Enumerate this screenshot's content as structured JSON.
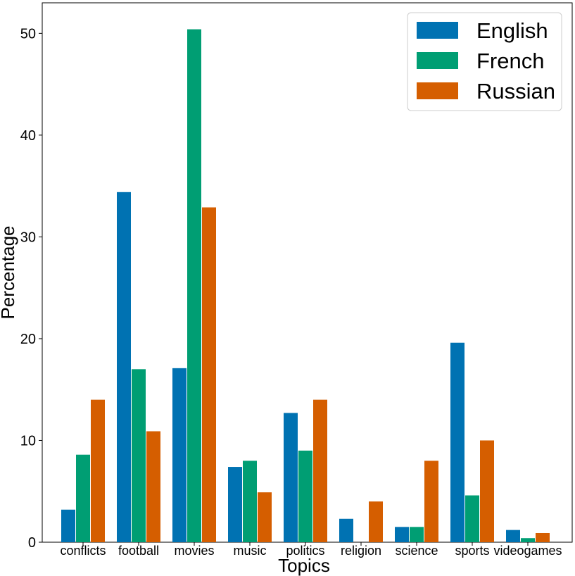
{
  "chart_data": {
    "type": "bar",
    "xlabel": "Topics",
    "ylabel": "Percentage",
    "ylim": [
      0,
      53
    ],
    "yticks": [
      "0",
      "10",
      "20",
      "30",
      "40",
      "50"
    ],
    "grid": false,
    "legend_position": "top-right",
    "categories": [
      "conflicts",
      "football",
      "movies",
      "music",
      "politics",
      "religion",
      "science",
      "sports",
      "videogames"
    ],
    "series": [
      {
        "name": "English",
        "color": "#0072b2",
        "values": [
          3.2,
          34.4,
          17.1,
          7.4,
          12.7,
          2.3,
          1.5,
          19.6,
          1.2
        ]
      },
      {
        "name": "French",
        "color": "#009e73",
        "values": [
          8.6,
          17.0,
          50.4,
          8.0,
          9.0,
          0.0,
          1.5,
          4.6,
          0.4
        ]
      },
      {
        "name": "Russian",
        "color": "#d55e00",
        "values": [
          14.0,
          10.9,
          32.9,
          4.9,
          14.0,
          4.0,
          8.0,
          10.0,
          0.9
        ]
      }
    ]
  }
}
